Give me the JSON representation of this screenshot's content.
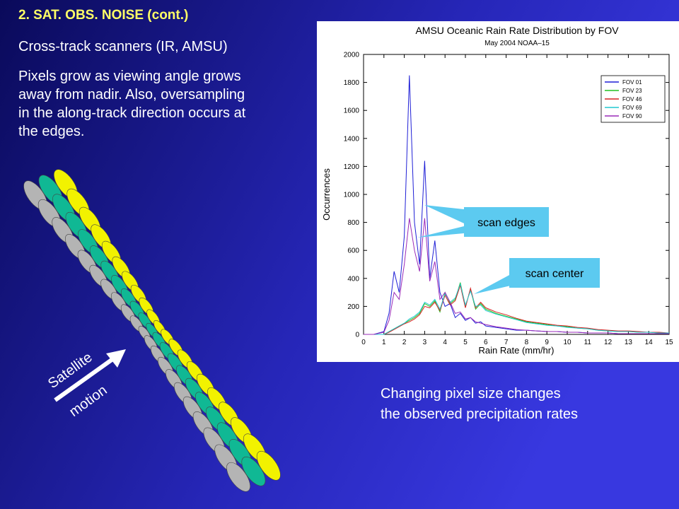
{
  "slide": {
    "heading": "2.  SAT. OBS. NOISE (cont.)",
    "subheading": "Cross-track scanners (IR, AMSU)",
    "paragraph": [
      "Pixels grow as viewing angle grows",
      "away from nadir.  Also, oversampling",
      "in the along-track direction occurs at",
      "the edges."
    ],
    "arrow_labels": [
      "Satellite",
      "motion"
    ],
    "caption": [
      "Changing pixel size changes",
      "the observed precipitation rates"
    ]
  },
  "chart_data": {
    "type": "line",
    "title": "AMSU Oceanic Rain Rate Distribution by FOV",
    "subtitle": "May 2004 NOAA–15",
    "x_label": "Rain Rate (mm/hr)",
    "y_label": "Occurrences",
    "annotations": [
      "scan edges",
      "scan center"
    ],
    "xlim": [
      0,
      15
    ],
    "ylim": [
      0,
      2000
    ],
    "xticks": [
      0,
      1,
      2,
      3,
      4,
      5,
      6,
      7,
      8,
      9,
      10,
      11,
      12,
      13,
      14,
      15
    ],
    "yticks": [
      0,
      200,
      400,
      600,
      800,
      1000,
      1200,
      1400,
      1600,
      1800,
      2000
    ],
    "legend": "upper right",
    "x": [
      0,
      0.5,
      1,
      1.25,
      1.5,
      1.75,
      2,
      2.25,
      2.5,
      2.75,
      3,
      3.25,
      3.5,
      3.75,
      4,
      4.25,
      4.5,
      4.75,
      5,
      5.25,
      5.5,
      5.75,
      6,
      6.5,
      7,
      7.5,
      8,
      8.5,
      9,
      9.5,
      10,
      10.5,
      11,
      11.5,
      12,
      12.5,
      13,
      13.5,
      14,
      14.5,
      15
    ],
    "series": [
      {
        "name": "FOV 01",
        "color": "#1f1fd6",
        "values": [
          0,
          0,
          20,
          150,
          450,
          300,
          700,
          1850,
          800,
          500,
          1240,
          400,
          670,
          300,
          200,
          220,
          120,
          150,
          100,
          120,
          80,
          90,
          60,
          50,
          40,
          30,
          30,
          25,
          20,
          20,
          15,
          15,
          10,
          10,
          10,
          5,
          5,
          5,
          5,
          5,
          5
        ]
      },
      {
        "name": "FOV 23",
        "color": "#22c022",
        "values": [
          0,
          0,
          0,
          20,
          40,
          60,
          80,
          100,
          120,
          150,
          220,
          200,
          240,
          160,
          300,
          220,
          250,
          370,
          200,
          320,
          180,
          220,
          180,
          150,
          130,
          110,
          90,
          80,
          70,
          60,
          55,
          45,
          40,
          30,
          25,
          20,
          20,
          15,
          15,
          10,
          10
        ]
      },
      {
        "name": "FOV 46",
        "color": "#d62020",
        "values": [
          0,
          0,
          0,
          15,
          35,
          55,
          75,
          90,
          110,
          140,
          200,
          190,
          230,
          170,
          280,
          210,
          240,
          350,
          190,
          330,
          190,
          230,
          190,
          160,
          140,
          115,
          95,
          85,
          75,
          65,
          60,
          50,
          45,
          35,
          30,
          25,
          25,
          20,
          15,
          15,
          10
        ]
      },
      {
        "name": "FOV 69",
        "color": "#20c8d0",
        "values": [
          0,
          0,
          0,
          20,
          40,
          60,
          80,
          110,
          130,
          160,
          230,
          210,
          250,
          180,
          290,
          230,
          260,
          360,
          210,
          310,
          200,
          210,
          170,
          145,
          125,
          105,
          85,
          75,
          65,
          60,
          50,
          45,
          40,
          30,
          25,
          20,
          20,
          15,
          15,
          10,
          10
        ]
      },
      {
        "name": "FOV 90",
        "color": "#9a2ab8",
        "values": [
          0,
          0,
          15,
          100,
          300,
          250,
          500,
          830,
          600,
          450,
          830,
          380,
          520,
          250,
          300,
          230,
          150,
          160,
          110,
          120,
          90,
          80,
          70,
          55,
          45,
          35,
          30,
          25,
          20,
          20,
          15,
          15,
          10,
          10,
          10,
          5,
          5,
          5,
          5,
          5,
          5
        ]
      }
    ]
  }
}
